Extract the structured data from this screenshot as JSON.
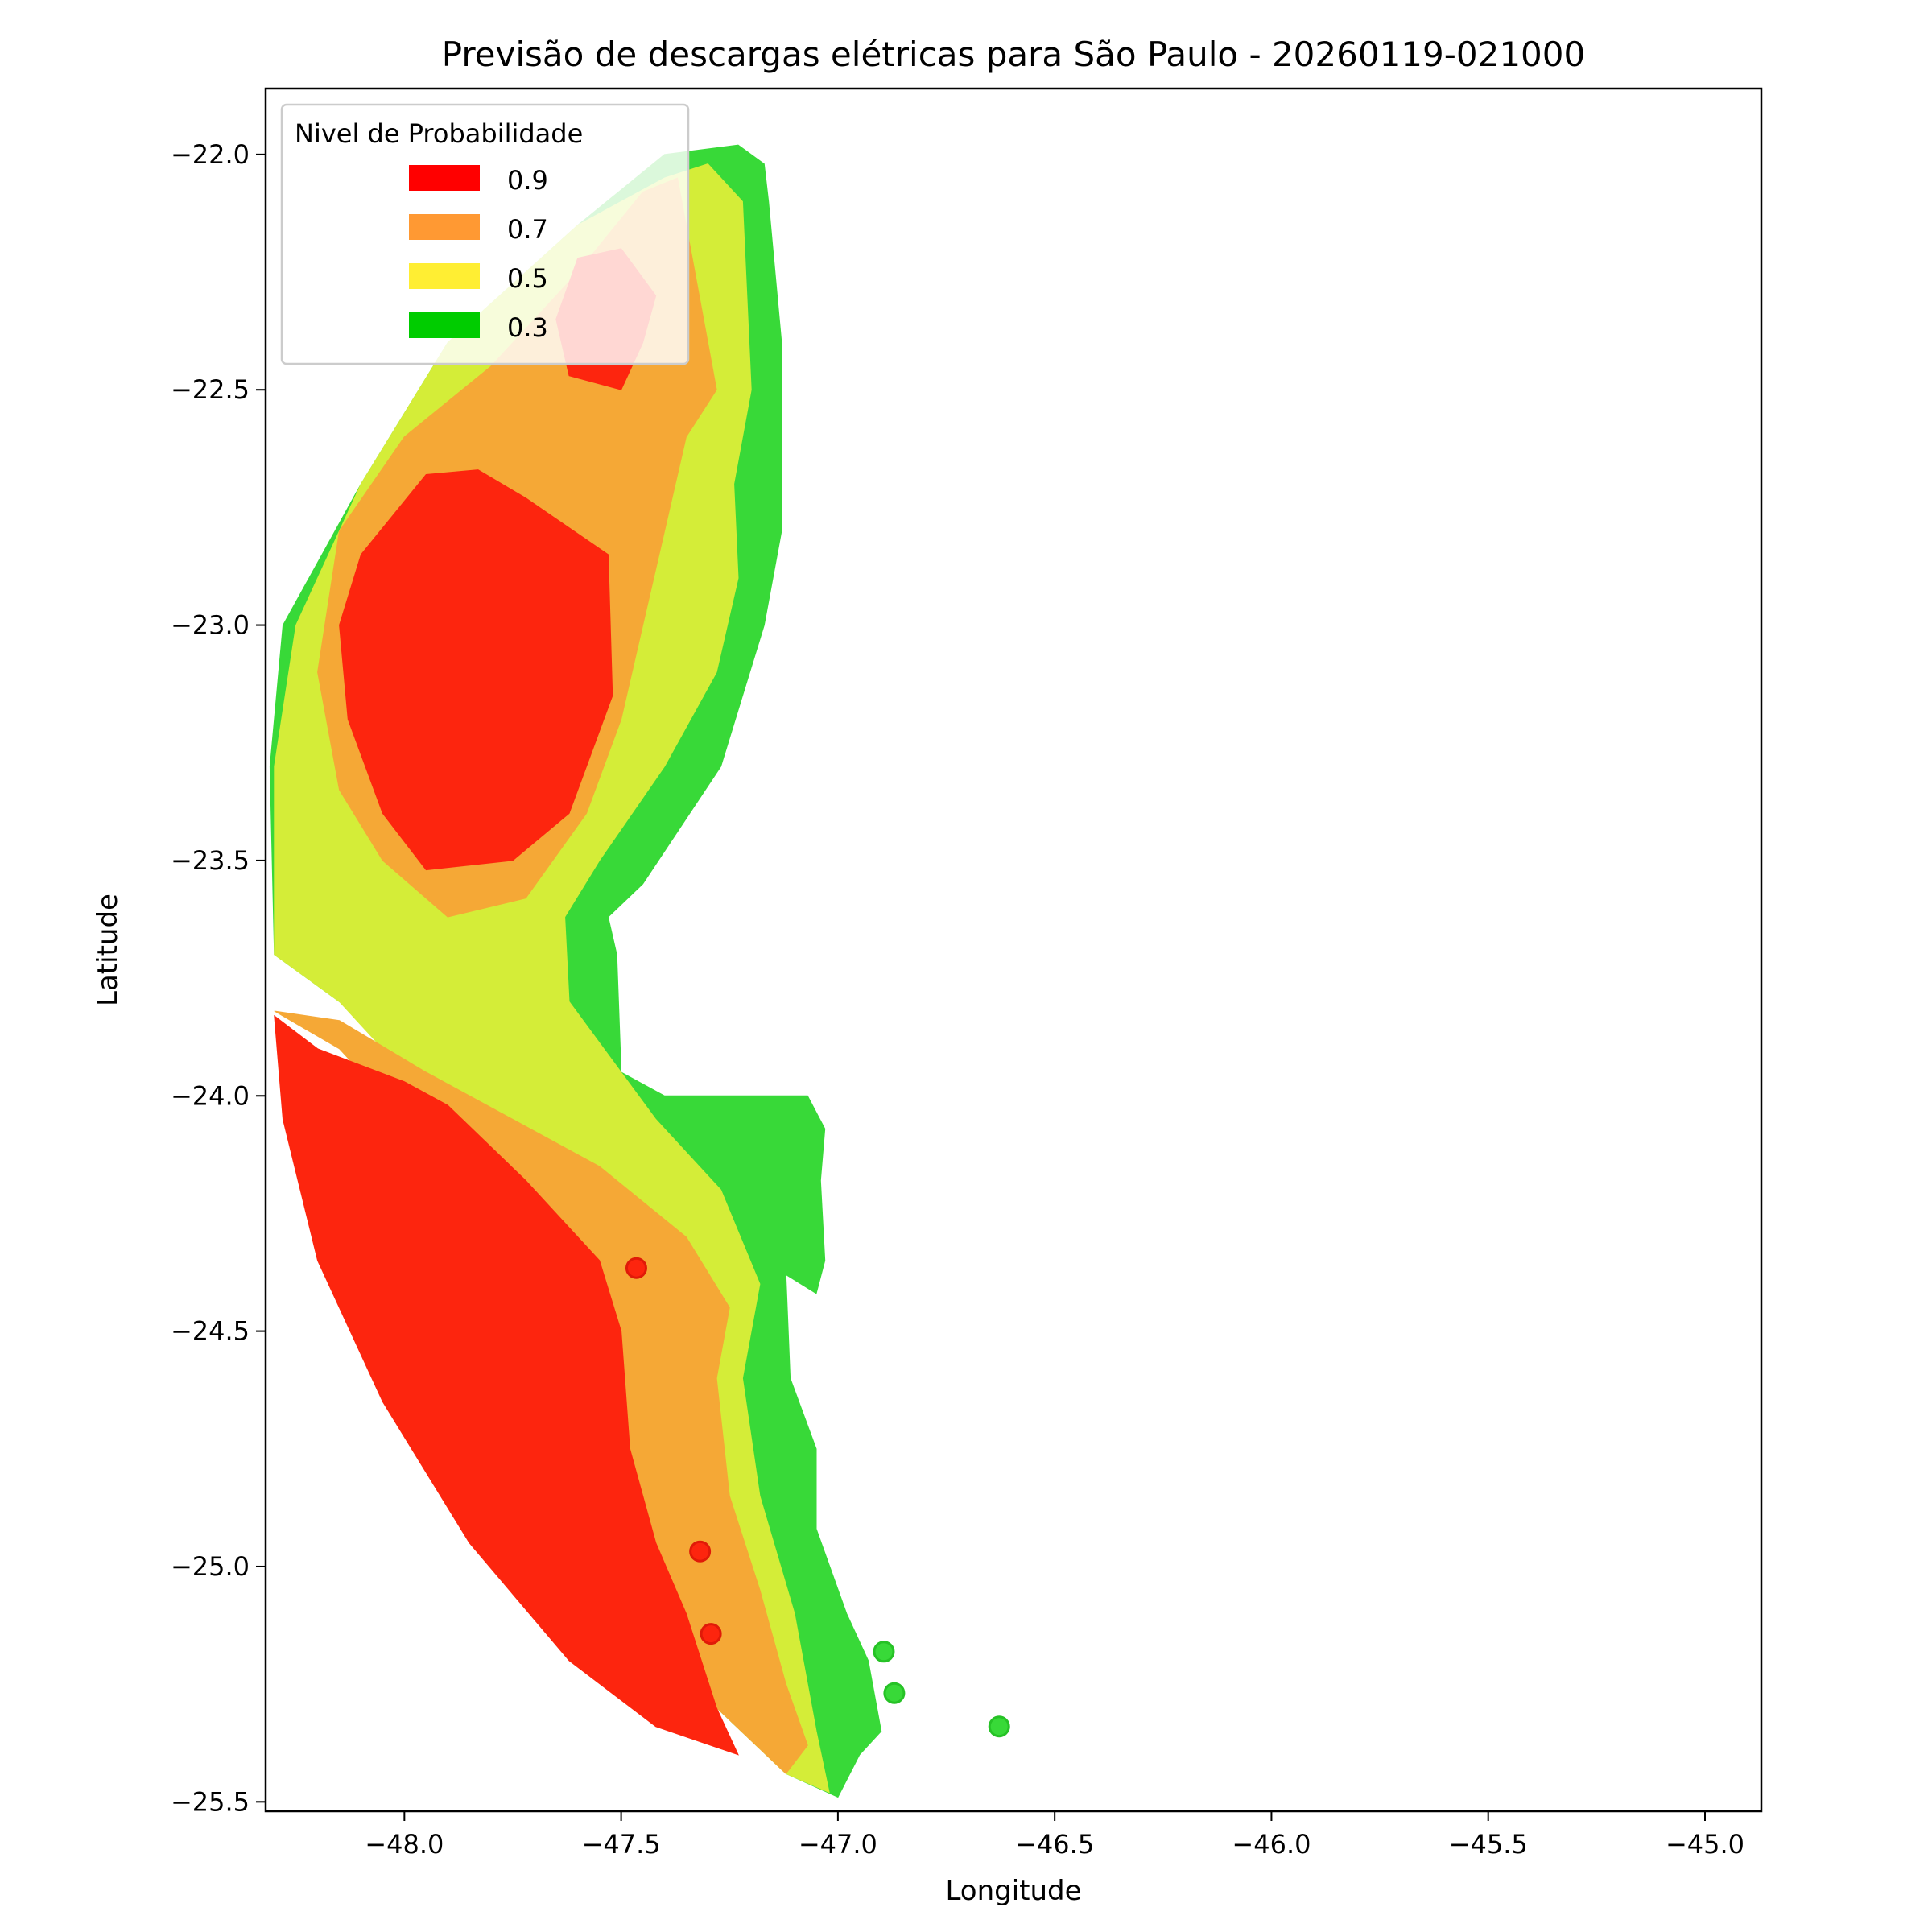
{
  "chart_data": {
    "type": "contour-map",
    "title": "Previsão de descargas elétricas para São Paulo - 20260119-021000",
    "xlabel": "Longitude",
    "ylabel": "Latitude",
    "xlim": [
      -48.32,
      -44.87
    ],
    "ylim": [
      -25.52,
      -21.86
    ],
    "x_ticks": [
      -48.0,
      -47.5,
      -47.0,
      -46.5,
      -46.0,
      -45.5,
      -45.0
    ],
    "x_tick_labels": [
      "−48.0",
      "−47.5",
      "−47.0",
      "−46.5",
      "−46.0",
      "−45.5",
      "−45.0"
    ],
    "y_ticks": [
      -22.0,
      -22.5,
      -23.0,
      -23.5,
      -24.0,
      -24.5,
      -25.0,
      -25.5
    ],
    "y_tick_labels": [
      "−22.0",
      "−22.5",
      "−23.0",
      "−23.5",
      "−24.0",
      "−24.5",
      "−25.0",
      "−25.5"
    ],
    "grid": false,
    "legend": {
      "title": "Nivel de Probabilidade",
      "placement": "top-left",
      "entries": [
        {
          "label": "0.9",
          "color": "#ff0000"
        },
        {
          "label": "0.7",
          "color": "#ff9933"
        },
        {
          "label": "0.5",
          "color": "#ffee33"
        },
        {
          "label": "0.3",
          "color": "#00cc00"
        }
      ]
    },
    "levels": [
      {
        "level": 0.3,
        "color": "#38d938",
        "polygons": [
          [
            [
              -47.23,
              -21.98
            ],
            [
              -47.17,
              -22.02
            ],
            [
              -47.16,
              -22.1
            ],
            [
              -47.13,
              -22.4
            ],
            [
              -47.13,
              -22.8
            ],
            [
              -47.17,
              -23.0
            ],
            [
              -47.27,
              -23.3
            ],
            [
              -47.45,
              -23.55
            ],
            [
              -47.53,
              -23.62
            ],
            [
              -47.51,
              -23.7
            ],
            [
              -47.5,
              -23.95
            ],
            [
              -47.4,
              -24.0
            ],
            [
              -47.07,
              -24.0
            ],
            [
              -47.03,
              -24.07
            ],
            [
              -47.04,
              -24.18
            ],
            [
              -47.03,
              -24.35
            ],
            [
              -47.05,
              -24.42
            ],
            [
              -47.12,
              -24.38
            ],
            [
              -47.11,
              -24.6
            ],
            [
              -47.05,
              -24.75
            ],
            [
              -47.05,
              -24.92
            ],
            [
              -46.98,
              -25.1
            ],
            [
              -46.93,
              -25.2
            ],
            [
              -46.9,
              -25.35
            ],
            [
              -46.95,
              -25.4
            ],
            [
              -47.0,
              -25.49
            ],
            [
              -47.12,
              -25.44
            ],
            [
              -47.28,
              -25.3
            ],
            [
              -47.33,
              -25.0
            ],
            [
              -47.43,
              -24.7
            ],
            [
              -47.55,
              -24.4
            ],
            [
              -47.8,
              -24.0
            ],
            [
              -48.0,
              -23.9
            ],
            [
              -48.3,
              -23.7
            ],
            [
              -48.31,
              -23.3
            ],
            [
              -48.28,
              -23.0
            ],
            [
              -48.1,
              -22.7
            ],
            [
              -47.9,
              -22.4
            ],
            [
              -47.6,
              -22.15
            ],
            [
              -47.4,
              -22.0
            ]
          ]
        ]
      },
      {
        "level": 0.5,
        "color": "#d4ed38",
        "polygons": [
          [
            [
              -47.3,
              -22.02
            ],
            [
              -47.22,
              -22.1
            ],
            [
              -47.21,
              -22.3
            ],
            [
              -47.2,
              -22.5
            ],
            [
              -47.24,
              -22.7
            ],
            [
              -47.23,
              -22.9
            ],
            [
              -47.28,
              -23.1
            ],
            [
              -47.4,
              -23.3
            ],
            [
              -47.55,
              -23.5
            ],
            [
              -47.63,
              -23.62
            ],
            [
              -47.62,
              -23.8
            ],
            [
              -47.5,
              -23.95
            ],
            [
              -47.42,
              -24.05
            ],
            [
              -47.27,
              -24.2
            ],
            [
              -47.18,
              -24.4
            ],
            [
              -47.22,
              -24.6
            ],
            [
              -47.18,
              -24.85
            ],
            [
              -47.1,
              -25.1
            ],
            [
              -47.05,
              -25.35
            ],
            [
              -47.02,
              -25.48
            ],
            [
              -47.12,
              -25.44
            ],
            [
              -47.28,
              -25.3
            ],
            [
              -47.4,
              -25.0
            ],
            [
              -47.55,
              -24.7
            ],
            [
              -47.75,
              -24.4
            ],
            [
              -47.95,
              -24.0
            ],
            [
              -48.15,
              -23.8
            ],
            [
              -48.3,
              -23.7
            ],
            [
              -48.3,
              -23.3
            ],
            [
              -48.25,
              -23.0
            ],
            [
              -48.1,
              -22.7
            ],
            [
              -47.9,
              -22.4
            ],
            [
              -47.6,
              -22.15
            ],
            [
              -47.4,
              -22.05
            ]
          ]
        ]
      },
      {
        "level": 0.7,
        "color": "#f5a836",
        "polygons": [
          [
            [
              -47.37,
              -22.05
            ],
            [
              -47.32,
              -22.3
            ],
            [
              -47.28,
              -22.5
            ],
            [
              -47.35,
              -22.6
            ],
            [
              -47.4,
              -22.8
            ],
            [
              -47.45,
              -23.0
            ],
            [
              -47.5,
              -23.2
            ],
            [
              -47.58,
              -23.4
            ],
            [
              -47.72,
              -23.58
            ],
            [
              -47.9,
              -23.62
            ],
            [
              -48.05,
              -23.5
            ],
            [
              -48.15,
              -23.35
            ],
            [
              -48.2,
              -23.1
            ],
            [
              -48.15,
              -22.8
            ],
            [
              -48.0,
              -22.6
            ],
            [
              -47.8,
              -22.45
            ],
            [
              -47.6,
              -22.25
            ],
            [
              -47.45,
              -22.08
            ]
          ],
          [
            [
              -48.3,
              -23.82
            ],
            [
              -48.15,
              -23.84
            ],
            [
              -47.95,
              -23.95
            ],
            [
              -47.75,
              -24.05
            ],
            [
              -47.55,
              -24.15
            ],
            [
              -47.35,
              -24.3
            ],
            [
              -47.25,
              -24.45
            ],
            [
              -47.28,
              -24.6
            ],
            [
              -47.25,
              -24.85
            ],
            [
              -47.18,
              -25.05
            ],
            [
              -47.12,
              -25.25
            ],
            [
              -47.07,
              -25.38
            ],
            [
              -47.12,
              -25.44
            ],
            [
              -47.28,
              -25.3
            ],
            [
              -47.4,
              -25.0
            ],
            [
              -47.55,
              -24.7
            ],
            [
              -47.75,
              -24.4
            ],
            [
              -47.95,
              -24.1
            ],
            [
              -48.15,
              -23.9
            ]
          ]
        ]
      },
      {
        "level": 0.9,
        "color": "#fd250e",
        "polygons": [
          [
            [
              -47.5,
              -22.5
            ],
            [
              -47.45,
              -22.4
            ],
            [
              -47.42,
              -22.3
            ],
            [
              -47.5,
              -22.2
            ],
            [
              -47.6,
              -22.22
            ],
            [
              -47.65,
              -22.35
            ],
            [
              -47.62,
              -22.47
            ]
          ],
          [
            [
              -47.72,
              -22.73
            ],
            [
              -47.53,
              -22.85
            ],
            [
              -47.52,
              -23.15
            ],
            [
              -47.62,
              -23.4
            ],
            [
              -47.75,
              -23.5
            ],
            [
              -47.95,
              -23.52
            ],
            [
              -48.05,
              -23.4
            ],
            [
              -48.13,
              -23.2
            ],
            [
              -48.15,
              -23.0
            ],
            [
              -48.1,
              -22.85
            ],
            [
              -47.95,
              -22.68
            ],
            [
              -47.83,
              -22.67
            ]
          ],
          [
            [
              -48.3,
              -23.83
            ],
            [
              -48.2,
              -23.9
            ],
            [
              -48.0,
              -23.97
            ],
            [
              -47.9,
              -24.02
            ],
            [
              -47.72,
              -24.18
            ],
            [
              -47.55,
              -24.35
            ],
            [
              -47.5,
              -24.5
            ],
            [
              -47.48,
              -24.75
            ],
            [
              -47.42,
              -24.95
            ],
            [
              -47.35,
              -25.1
            ],
            [
              -47.28,
              -25.3
            ],
            [
              -47.23,
              -25.4
            ],
            [
              -47.42,
              -25.34
            ],
            [
              -47.62,
              -25.2
            ],
            [
              -47.85,
              -24.95
            ],
            [
              -48.05,
              -24.65
            ],
            [
              -48.2,
              -24.35
            ],
            [
              -48.28,
              -24.05
            ]
          ]
        ]
      }
    ],
    "markers": [
      {
        "lon": -47.465,
        "lat": -24.366,
        "color": "#fd250e"
      },
      {
        "lon": -47.318,
        "lat": -24.968,
        "color": "#fd250e"
      },
      {
        "lon": -47.293,
        "lat": -25.143,
        "color": "#fd250e"
      },
      {
        "lon": -46.894,
        "lat": -25.181,
        "color": "#38d938"
      },
      {
        "lon": -46.87,
        "lat": -25.269,
        "color": "#38d938"
      },
      {
        "lon": -46.628,
        "lat": -25.34,
        "color": "#38d938"
      }
    ]
  }
}
